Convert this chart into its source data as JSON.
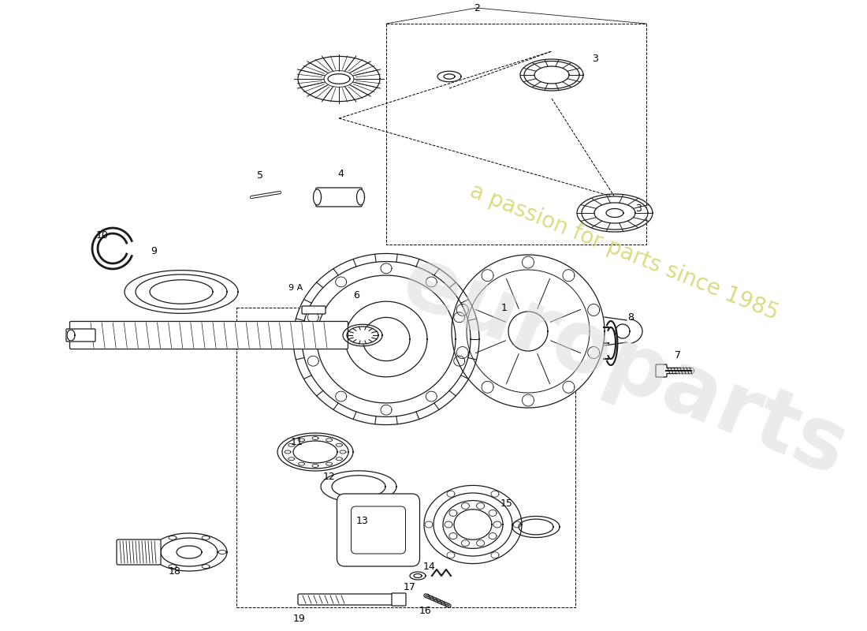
{
  "bg_color": "#ffffff",
  "line_color": "#1a1a1a",
  "lw": 0.9,
  "figsize": [
    11.0,
    8.0
  ],
  "dpi": 100,
  "watermark1": "europarts",
  "watermark2": "a passion for parts since 1985",
  "wm1_color": "#d8d8d8",
  "wm2_color": "#c8c840"
}
